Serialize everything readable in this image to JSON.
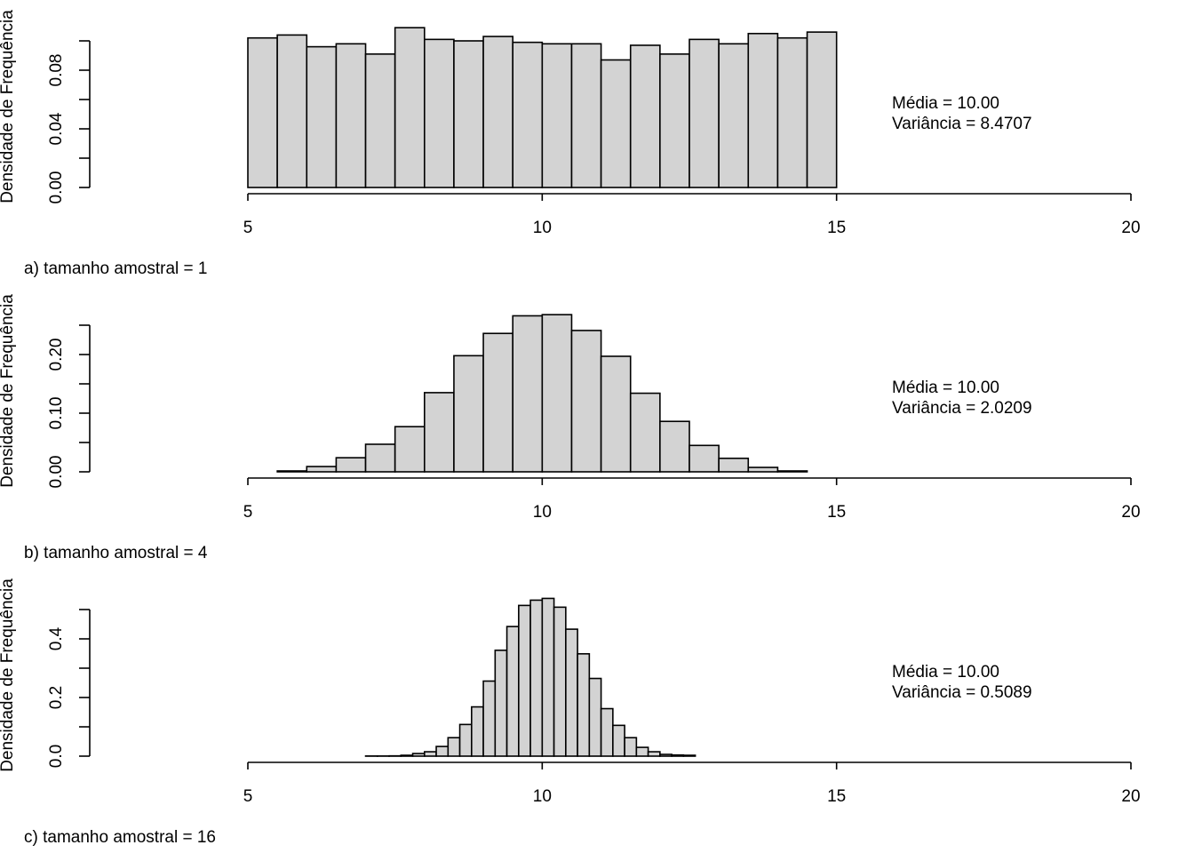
{
  "chart_data": [
    {
      "type": "histogram",
      "y_label": "Densidade de Frequência",
      "caption": "a) tamanho amostral  = 1",
      "annotations": [
        "Média =  10.00",
        "Variância =  8.4707"
      ],
      "color": "#d3d3d3",
      "bins": [
        5,
        5.5,
        6,
        6.5,
        7,
        7.5,
        8,
        8.5,
        9,
        9.5,
        10,
        10.5,
        11,
        11.5,
        12,
        12.5,
        13,
        13.5,
        14,
        14.5,
        15
      ],
      "values": [
        0.102,
        0.104,
        0.096,
        0.098,
        0.091,
        0.109,
        0.101,
        0.1,
        0.103,
        0.099,
        0.098,
        0.098,
        0.087,
        0.097,
        0.091,
        0.101,
        0.098,
        0.105,
        0.102,
        0.106
      ],
      "xlim": [
        5,
        20
      ],
      "xticks": [
        5,
        10,
        15,
        20
      ],
      "ylim": [
        0,
        0.1
      ],
      "yticks": [
        {
          "value": 0,
          "label": "0.00"
        },
        {
          "value": 0.04,
          "label": "0.04"
        },
        {
          "value": 0.08,
          "label": "0.08"
        }
      ],
      "minor_yticks": [
        0.02,
        0.06,
        0.1
      ]
    },
    {
      "type": "histogram",
      "y_label": "Densidade de Frequência",
      "caption": "b) tamanho amostral  = 4",
      "annotations": [
        "Média =  10.00",
        "Variância =  2.0209"
      ],
      "color": "#d3d3d3",
      "bins": [
        5.5,
        6,
        6.5,
        7,
        7.5,
        8,
        8.5,
        9,
        9.5,
        10,
        10.5,
        11,
        11.5,
        12,
        12.5,
        13,
        13.5,
        14,
        14.5
      ],
      "values": [
        0.0015,
        0.009,
        0.024,
        0.047,
        0.077,
        0.135,
        0.198,
        0.236,
        0.266,
        0.268,
        0.241,
        0.197,
        0.134,
        0.086,
        0.045,
        0.023,
        0.0075,
        0.0015
      ],
      "xlim": [
        5,
        20
      ],
      "xticks": [
        5,
        10,
        15,
        20
      ],
      "ylim": [
        0,
        0.25
      ],
      "yticks": [
        {
          "value": 0,
          "label": "0.00"
        },
        {
          "value": 0.1,
          "label": "0.10"
        },
        {
          "value": 0.2,
          "label": "0.20"
        }
      ],
      "minor_yticks": [
        0.05,
        0.15,
        0.25
      ]
    },
    {
      "type": "histogram",
      "y_label": "Densidade de Frequência",
      "caption": "c) tamanho amostral  = 16",
      "annotations": [
        "Média =  10.00",
        "Variância =  0.5089"
      ],
      "color": "#d3d3d3",
      "bins": [
        7,
        7.2,
        7.4,
        7.6,
        7.8,
        8,
        8.2,
        8.4,
        8.6,
        8.8,
        9,
        9.2,
        9.4,
        9.6,
        9.8,
        10,
        10.2,
        10.4,
        10.6,
        10.8,
        11,
        11.2,
        11.4,
        11.6,
        11.8,
        12,
        12.2,
        12.4,
        12.6
      ],
      "values": [
        0.0005,
        0.0005,
        0.001,
        0.003,
        0.009,
        0.015,
        0.033,
        0.063,
        0.108,
        0.168,
        0.256,
        0.361,
        0.442,
        0.514,
        0.532,
        0.538,
        0.508,
        0.433,
        0.349,
        0.265,
        0.162,
        0.105,
        0.063,
        0.03,
        0.015,
        0.006,
        0.004,
        0.003
      ],
      "xlim": [
        5,
        20
      ],
      "xticks": [
        5,
        10,
        15,
        20
      ],
      "ylim": [
        0,
        0.5
      ],
      "yticks": [
        {
          "value": 0,
          "label": "0.0"
        },
        {
          "value": 0.2,
          "label": "0.2"
        },
        {
          "value": 0.4,
          "label": "0.4"
        }
      ],
      "minor_yticks": [
        0.1,
        0.3,
        0.5
      ]
    }
  ]
}
